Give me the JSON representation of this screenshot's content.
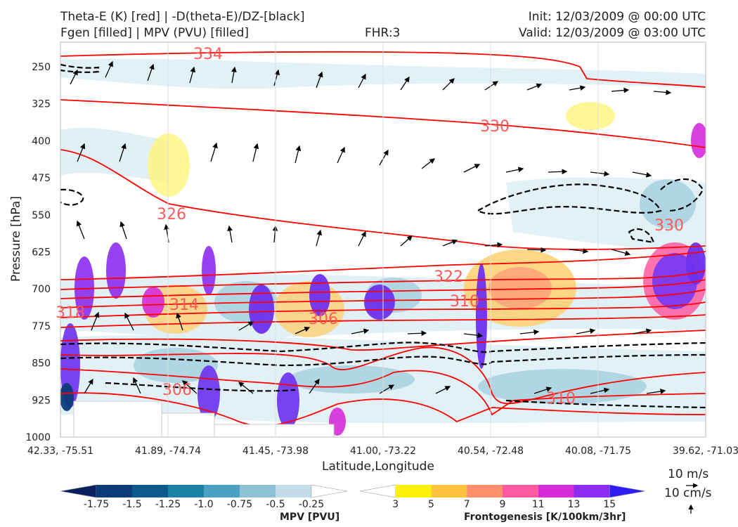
{
  "header": {
    "title_line1": "Theta-E (K) [red] | -D(theta-E)/DZ-[black]",
    "title_line2": "Fgen [filled] | MPV (PVU) [filled]",
    "fhr": "FHR:3",
    "init": "Init: 12/03/2009 @ 00:00 UTC",
    "valid": "Valid: 12/03/2009 @ 03:00 UTC"
  },
  "chart_data": {
    "type": "contour",
    "xlabel": "Latitude,Longitude",
    "ylabel": "Pressure [hPa]",
    "ylim": [
      1000,
      200
    ],
    "x_tick_labels": [
      "42.33, -75.51",
      "41.89, -74.74",
      "41.45, -73.98",
      "41.00, -73.22",
      "40.54, -72.48",
      "40.08, -71.75",
      "39.62, -71.03"
    ],
    "y_ticks": [
      250,
      325,
      400,
      475,
      550,
      625,
      700,
      775,
      850,
      925,
      1000
    ],
    "series": [
      {
        "name": "Theta-E (K)",
        "color": "#ff0000",
        "contour_labels": [
          334,
          330,
          326,
          322,
          318,
          314,
          310,
          306,
          306,
          310,
          310,
          330
        ]
      },
      {
        "name": "-D(theta-E)/DZ",
        "color": "#000000",
        "style": "dashed"
      },
      {
        "name": "Fgen",
        "filled": true
      },
      {
        "name": "MPV (PVU)",
        "filled": true
      }
    ]
  },
  "colorbars": {
    "mpv": {
      "title": "MPV [PVU]",
      "ticks": [
        "-1.75",
        "-1.5",
        "-1.25",
        "-1.0",
        "-0.75",
        "-0.5",
        "-0.25"
      ],
      "colors": [
        "#08215c",
        "#0b3b78",
        "#0d5a8e",
        "#1c82a5",
        "#4aa2c2",
        "#8dc1d6",
        "#c2dde8",
        "#ffffff"
      ]
    },
    "fgen": {
      "title": "Frontogenesis [K/100km/3hr]",
      "ticks": [
        "3",
        "5",
        "7",
        "9",
        "11",
        "13",
        "15"
      ],
      "colors": [
        "#ffffff",
        "#fff10a",
        "#ffc33d",
        "#ff8e6c",
        "#ff5aa0",
        "#d52bd9",
        "#8c2cf2",
        "#2e1cf6"
      ]
    }
  },
  "vector_legend": {
    "speed_label": "10 m/s",
    "vertical_label": "10 cm/s"
  }
}
